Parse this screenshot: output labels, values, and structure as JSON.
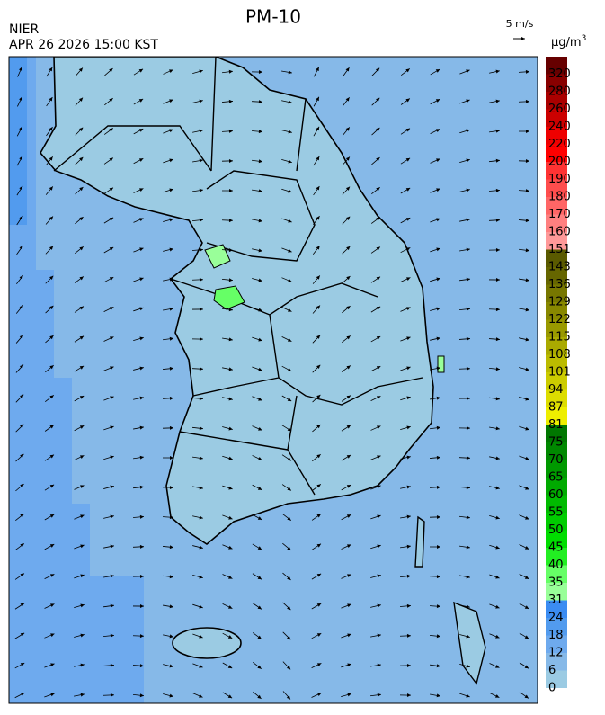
{
  "header": {
    "title": "PM-10",
    "agency": "NIER",
    "timestamp": "APR 26 2026 15:00 KST",
    "wind_scale": "5 m/s"
  },
  "colorbar": {
    "unit": "μg/m",
    "unit_exponent": "3",
    "boundaries": [
      0,
      6,
      12,
      18,
      24,
      31,
      35,
      40,
      45,
      50,
      55,
      60,
      65,
      70,
      75,
      81,
      87,
      94,
      101,
      108,
      115,
      122,
      129,
      136,
      143,
      151,
      160,
      170,
      180,
      190,
      200,
      220,
      240,
      260,
      280,
      320
    ],
    "colors": [
      "#9bcbe3",
      "#86b9e8",
      "#6eaaee",
      "#529bee",
      "#3b8cf2",
      "#99ff99",
      "#66ff66",
      "#22ee22",
      "#00dd00",
      "#00cc00",
      "#00bb00",
      "#00aa00",
      "#009900",
      "#008800",
      "#007700",
      "#eeee00",
      "#dddd00",
      "#cccc00",
      "#bbbb00",
      "#aaaa00",
      "#999900",
      "#888800",
      "#777700",
      "#666600",
      "#5a5a00",
      "#ff9999",
      "#ff8080",
      "#ff6666",
      "#ff4d4d",
      "#ff3333",
      "#ff0000",
      "#ee0000",
      "#cc0000",
      "#aa0000",
      "#880000",
      "#660000"
    ]
  }
}
